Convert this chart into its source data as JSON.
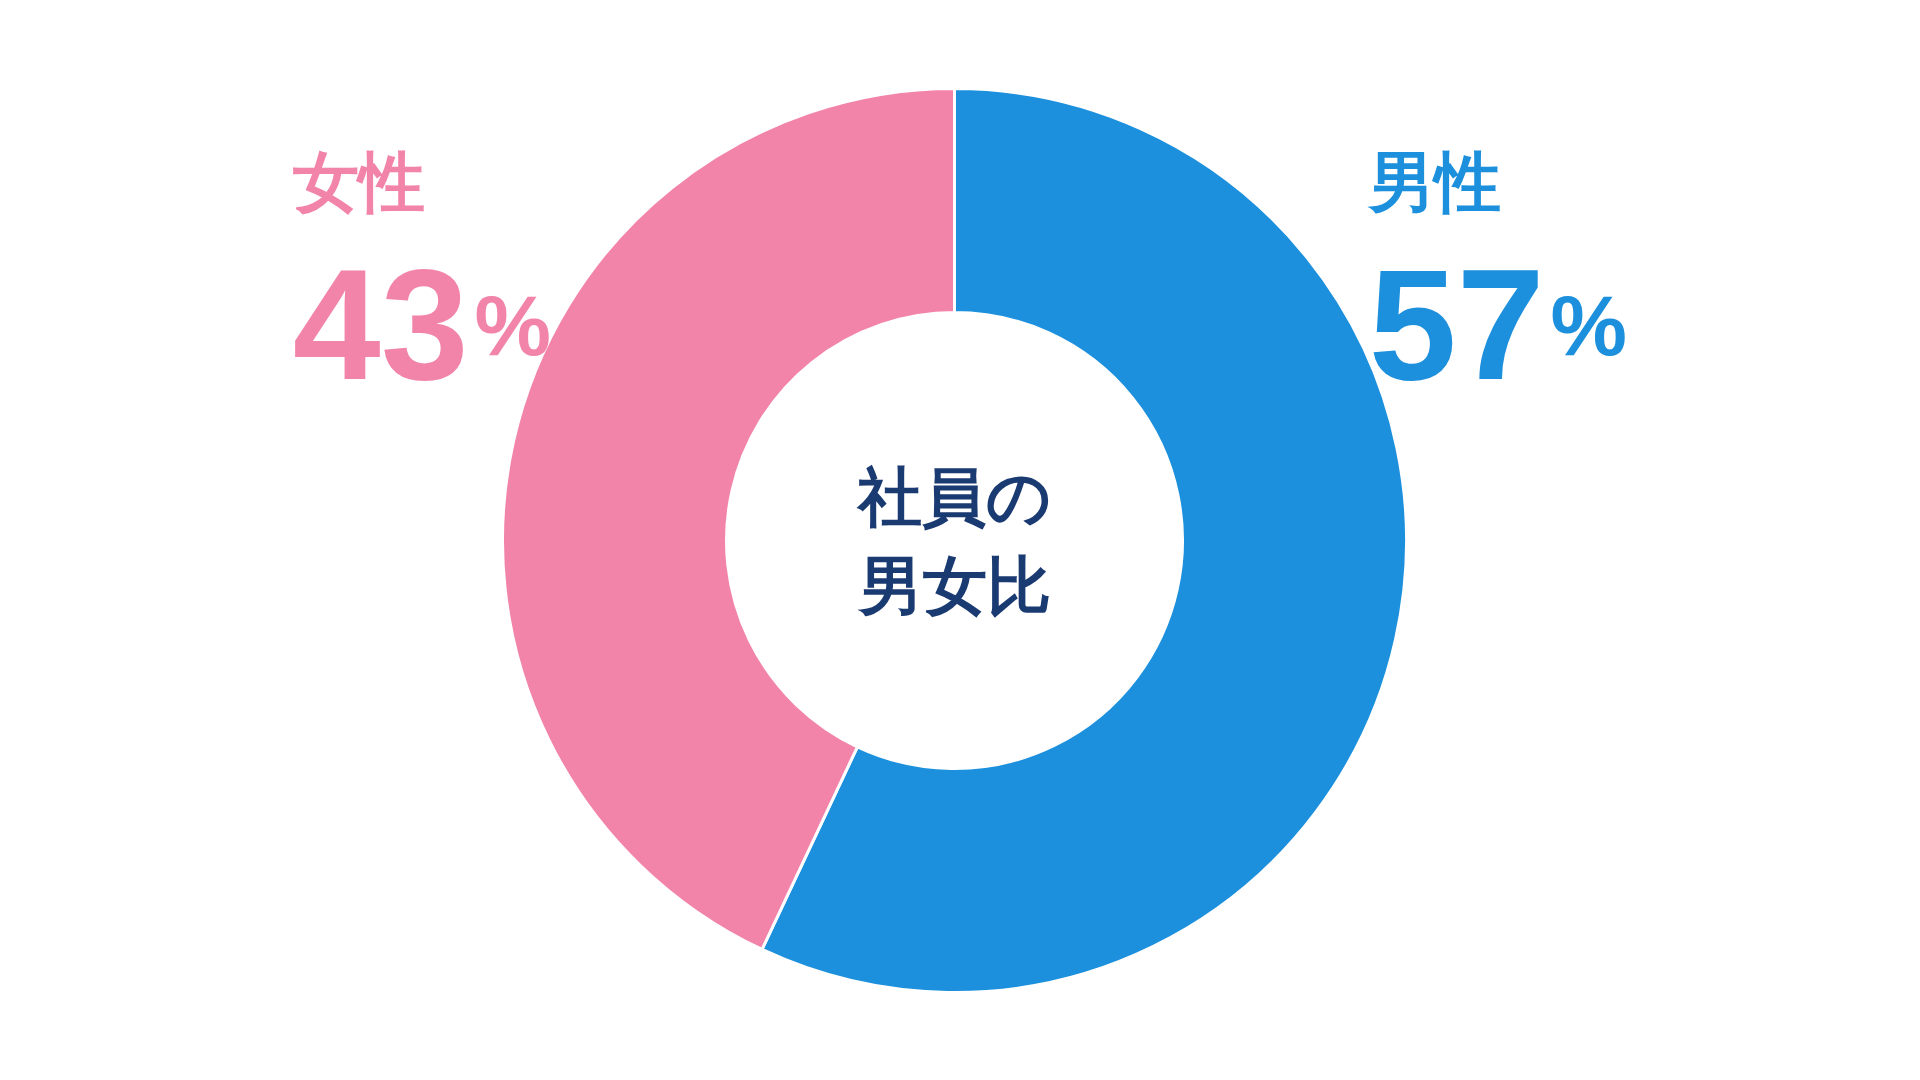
{
  "chart_data": {
    "type": "donut",
    "title": "社員の男女比",
    "categories": [
      "男性",
      "女性"
    ],
    "values": [
      57,
      43
    ],
    "colors": [
      "#1c90dd",
      "#f284a9"
    ],
    "value_labels": [
      "57%",
      "43%"
    ]
  }
}
